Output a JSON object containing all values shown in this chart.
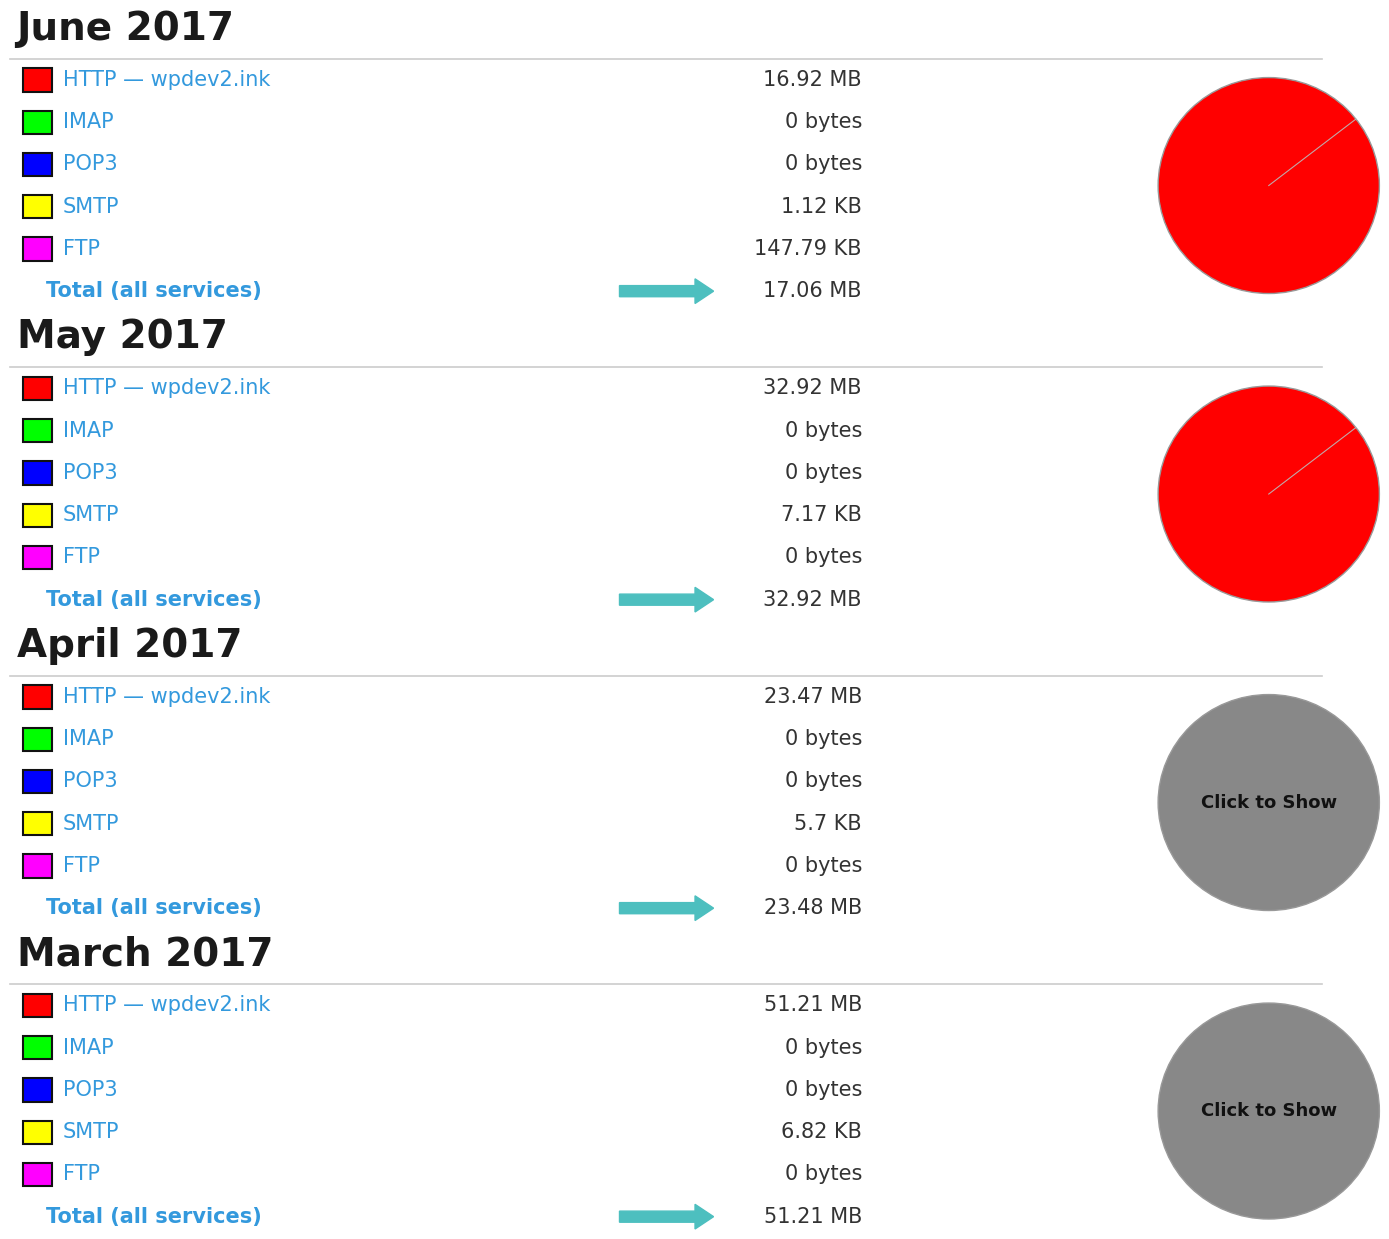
{
  "months": [
    {
      "title": "June 2017",
      "services": [
        {
          "name": "HTTP — wpdev2.ink",
          "color": "#ff0000",
          "value": "16.92 MB"
        },
        {
          "name": "IMAP",
          "color": "#00ff00",
          "value": "0 bytes"
        },
        {
          "name": "POP3",
          "color": "#0000ff",
          "value": "0 bytes"
        },
        {
          "name": "SMTP",
          "color": "#ffff00",
          "value": "1.12 KB"
        },
        {
          "name": "FTP",
          "color": "#ff00ff",
          "value": "147.79 KB"
        }
      ],
      "total": "17.06 MB",
      "pie_color": "#ff0000",
      "pie_visible": true
    },
    {
      "title": "May 2017",
      "services": [
        {
          "name": "HTTP — wpdev2.ink",
          "color": "#ff0000",
          "value": "32.92 MB"
        },
        {
          "name": "IMAP",
          "color": "#00ff00",
          "value": "0 bytes"
        },
        {
          "name": "POP3",
          "color": "#0000ff",
          "value": "0 bytes"
        },
        {
          "name": "SMTP",
          "color": "#ffff00",
          "value": "7.17 KB"
        },
        {
          "name": "FTP",
          "color": "#ff00ff",
          "value": "0 bytes"
        }
      ],
      "total": "32.92 MB",
      "pie_color": "#ff0000",
      "pie_visible": true
    },
    {
      "title": "April 2017",
      "services": [
        {
          "name": "HTTP — wpdev2.ink",
          "color": "#ff0000",
          "value": "23.47 MB"
        },
        {
          "name": "IMAP",
          "color": "#00ff00",
          "value": "0 bytes"
        },
        {
          "name": "POP3",
          "color": "#0000ff",
          "value": "0 bytes"
        },
        {
          "name": "SMTP",
          "color": "#ffff00",
          "value": "5.7 KB"
        },
        {
          "name": "FTP",
          "color": "#ff00ff",
          "value": "0 bytes"
        }
      ],
      "total": "23.48 MB",
      "pie_color": "#888888",
      "pie_visible": false
    },
    {
      "title": "March 2017",
      "services": [
        {
          "name": "HTTP — wpdev2.ink",
          "color": "#ff0000",
          "value": "51.21 MB"
        },
        {
          "name": "IMAP",
          "color": "#00ff00",
          "value": "0 bytes"
        },
        {
          "name": "POP3",
          "color": "#0000ff",
          "value": "0 bytes"
        },
        {
          "name": "SMTP",
          "color": "#ffff00",
          "value": "6.82 KB"
        },
        {
          "name": "FTP",
          "color": "#ff00ff",
          "value": "0 bytes"
        }
      ],
      "total": "51.21 MB",
      "pie_color": "#888888",
      "pie_visible": false
    }
  ],
  "bg_color": "#ffffff",
  "title_color": "#1a1a1a",
  "label_color": "#3399dd",
  "value_color": "#333333",
  "total_label_color": "#3399dd",
  "total_value_color": "#333333",
  "arrow_color": "#4dbfbf",
  "divider_color": "#cccccc",
  "click_to_show_text": "Click to Show",
  "click_to_show_color": "#111111",
  "box_edge_color": "#111111",
  "pie_edge_color": "#999999",
  "pie_line_color": "#bbbbbb",
  "title_fontsize": 28,
  "label_fontsize": 15,
  "value_fontsize": 15,
  "total_fontsize": 15,
  "click_fontsize": 13
}
